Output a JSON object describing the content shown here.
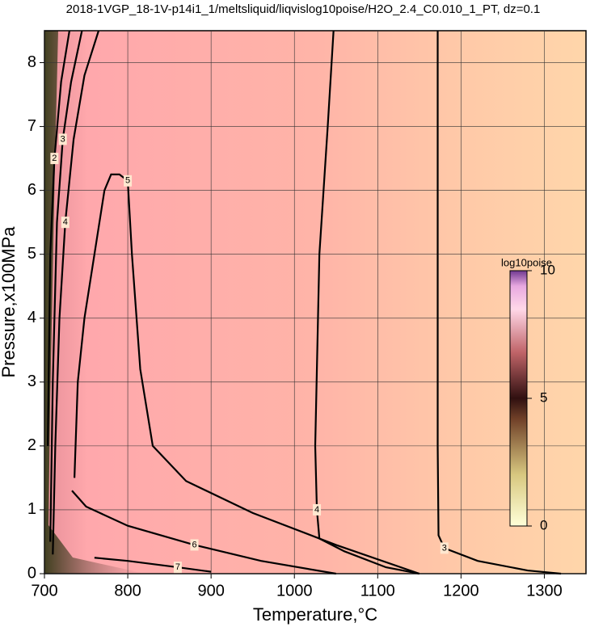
{
  "chart_data": {
    "type": "contour",
    "title": "2018-1VGP_18-1V-p14i1_1/meltsliquid/liqvislog10poise/H2O_2.4_C0.010_1_PT, dz=0.1",
    "x_label": "Temperature,°C",
    "y_label": "Pressure,x100MPa",
    "xlim": [
      700,
      1350
    ],
    "ylim": [
      0,
      8.5
    ],
    "xticks": [
      700,
      800,
      900,
      1000,
      1100,
      1200,
      1300
    ],
    "yticks": [
      0,
      1,
      2,
      3,
      4,
      5,
      6,
      7,
      8
    ],
    "grid": true,
    "contours": [
      {
        "level": 3,
        "x": [
          1172,
          1172,
          1172,
          1173,
          1180,
          1220,
          1280,
          1320
        ],
        "y": [
          8.5,
          5,
          2,
          0.6,
          0.4,
          0.2,
          0.05,
          0
        ]
      },
      {
        "level": 4,
        "x": [
          1047,
          1040,
          1030,
          1025,
          1027,
          1030,
          1060,
          1110,
          1150
        ],
        "y": [
          8.5,
          7,
          5,
          2,
          1,
          0.55,
          0.35,
          0.1,
          0
        ]
      },
      {
        "level": 5,
        "x": [
          1150,
          1050,
          950,
          870,
          830,
          815,
          805,
          800,
          790,
          780,
          772,
          760,
          748,
          740,
          736
        ],
        "y": [
          0,
          0.45,
          0.95,
          1.45,
          2,
          3.2,
          5,
          6.15,
          6.25,
          6.25,
          6,
          5,
          4,
          3,
          1.5
        ]
      },
      {
        "level": 6,
        "x": [
          733,
          750,
          800,
          880,
          960,
          1050
        ],
        "y": [
          1.3,
          1.05,
          0.75,
          0.45,
          0.2,
          0
        ]
      },
      {
        "level": 7,
        "x": [
          760,
          800,
          860,
          900
        ],
        "y": [
          0.25,
          0.2,
          0.1,
          0.03
        ]
      },
      {
        "level": 4,
        "x": [
          710,
          713,
          718,
          725,
          735,
          748,
          765
        ],
        "y": [
          0.3,
          2,
          4,
          5.5,
          6.8,
          7.8,
          8.5
        ]
      },
      {
        "level": 3,
        "x": [
          707,
          710,
          715,
          722,
          732,
          745
        ],
        "y": [
          0.5,
          3,
          5.5,
          6.8,
          7.7,
          8.5
        ]
      },
      {
        "level": 2,
        "x": [
          704,
          707,
          712,
          720,
          730
        ],
        "y": [
          2,
          5,
          6.5,
          7.7,
          8.5
        ]
      }
    ],
    "colorbar": {
      "label": "log10poise",
      "lim": [
        0,
        10
      ],
      "ticks": [
        0,
        5,
        10
      ]
    }
  }
}
